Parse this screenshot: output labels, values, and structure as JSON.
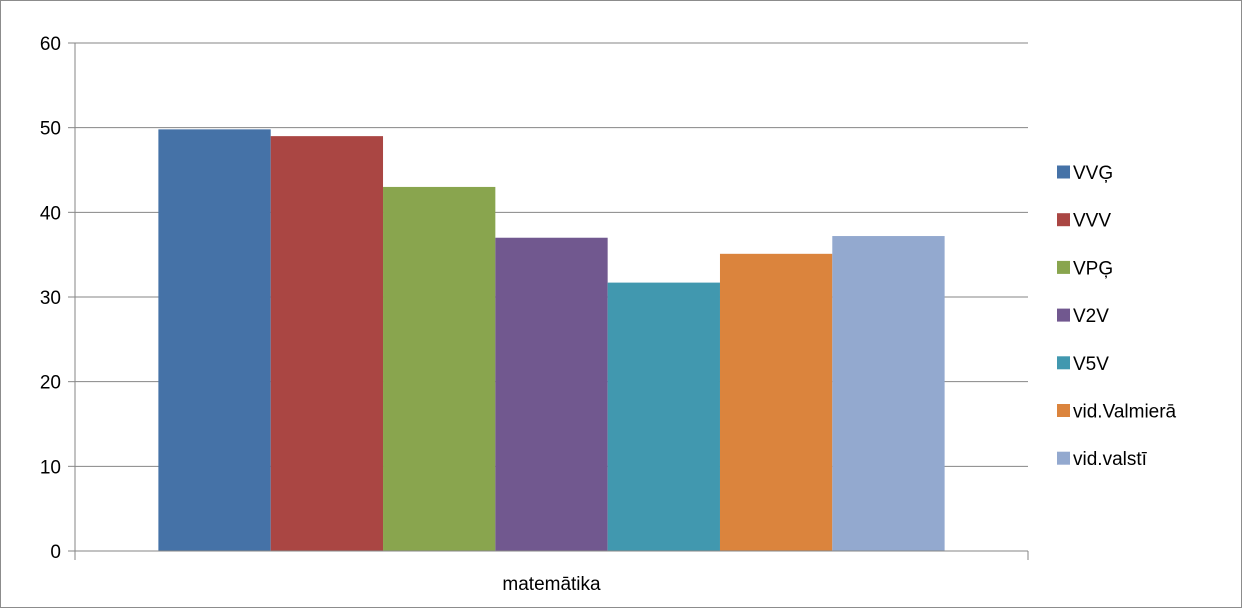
{
  "chart_data": {
    "type": "bar",
    "categories": [
      "matemātika"
    ],
    "series": [
      {
        "name": "VVĢ",
        "values": [
          49.8
        ],
        "color": "#4572A7"
      },
      {
        "name": "VVV",
        "values": [
          49.0
        ],
        "color": "#AA4643"
      },
      {
        "name": "VPĢ",
        "values": [
          43.0
        ],
        "color": "#89A54E"
      },
      {
        "name": "V2V",
        "values": [
          37.0
        ],
        "color": "#71588F"
      },
      {
        "name": "V5V",
        "values": [
          31.7
        ],
        "color": "#4198AF"
      },
      {
        "name": "vid.Valmierā",
        "values": [
          35.1
        ],
        "color": "#DB843D"
      },
      {
        "name": "vid.valstī",
        "values": [
          37.2
        ],
        "color": "#93A9CF"
      }
    ],
    "ylim": [
      0,
      60
    ],
    "yticks": [
      "0",
      "10",
      "20",
      "30",
      "40",
      "50",
      "60"
    ],
    "grid": true,
    "legend_position": "right",
    "title": "",
    "xlabel": "",
    "ylabel": ""
  }
}
